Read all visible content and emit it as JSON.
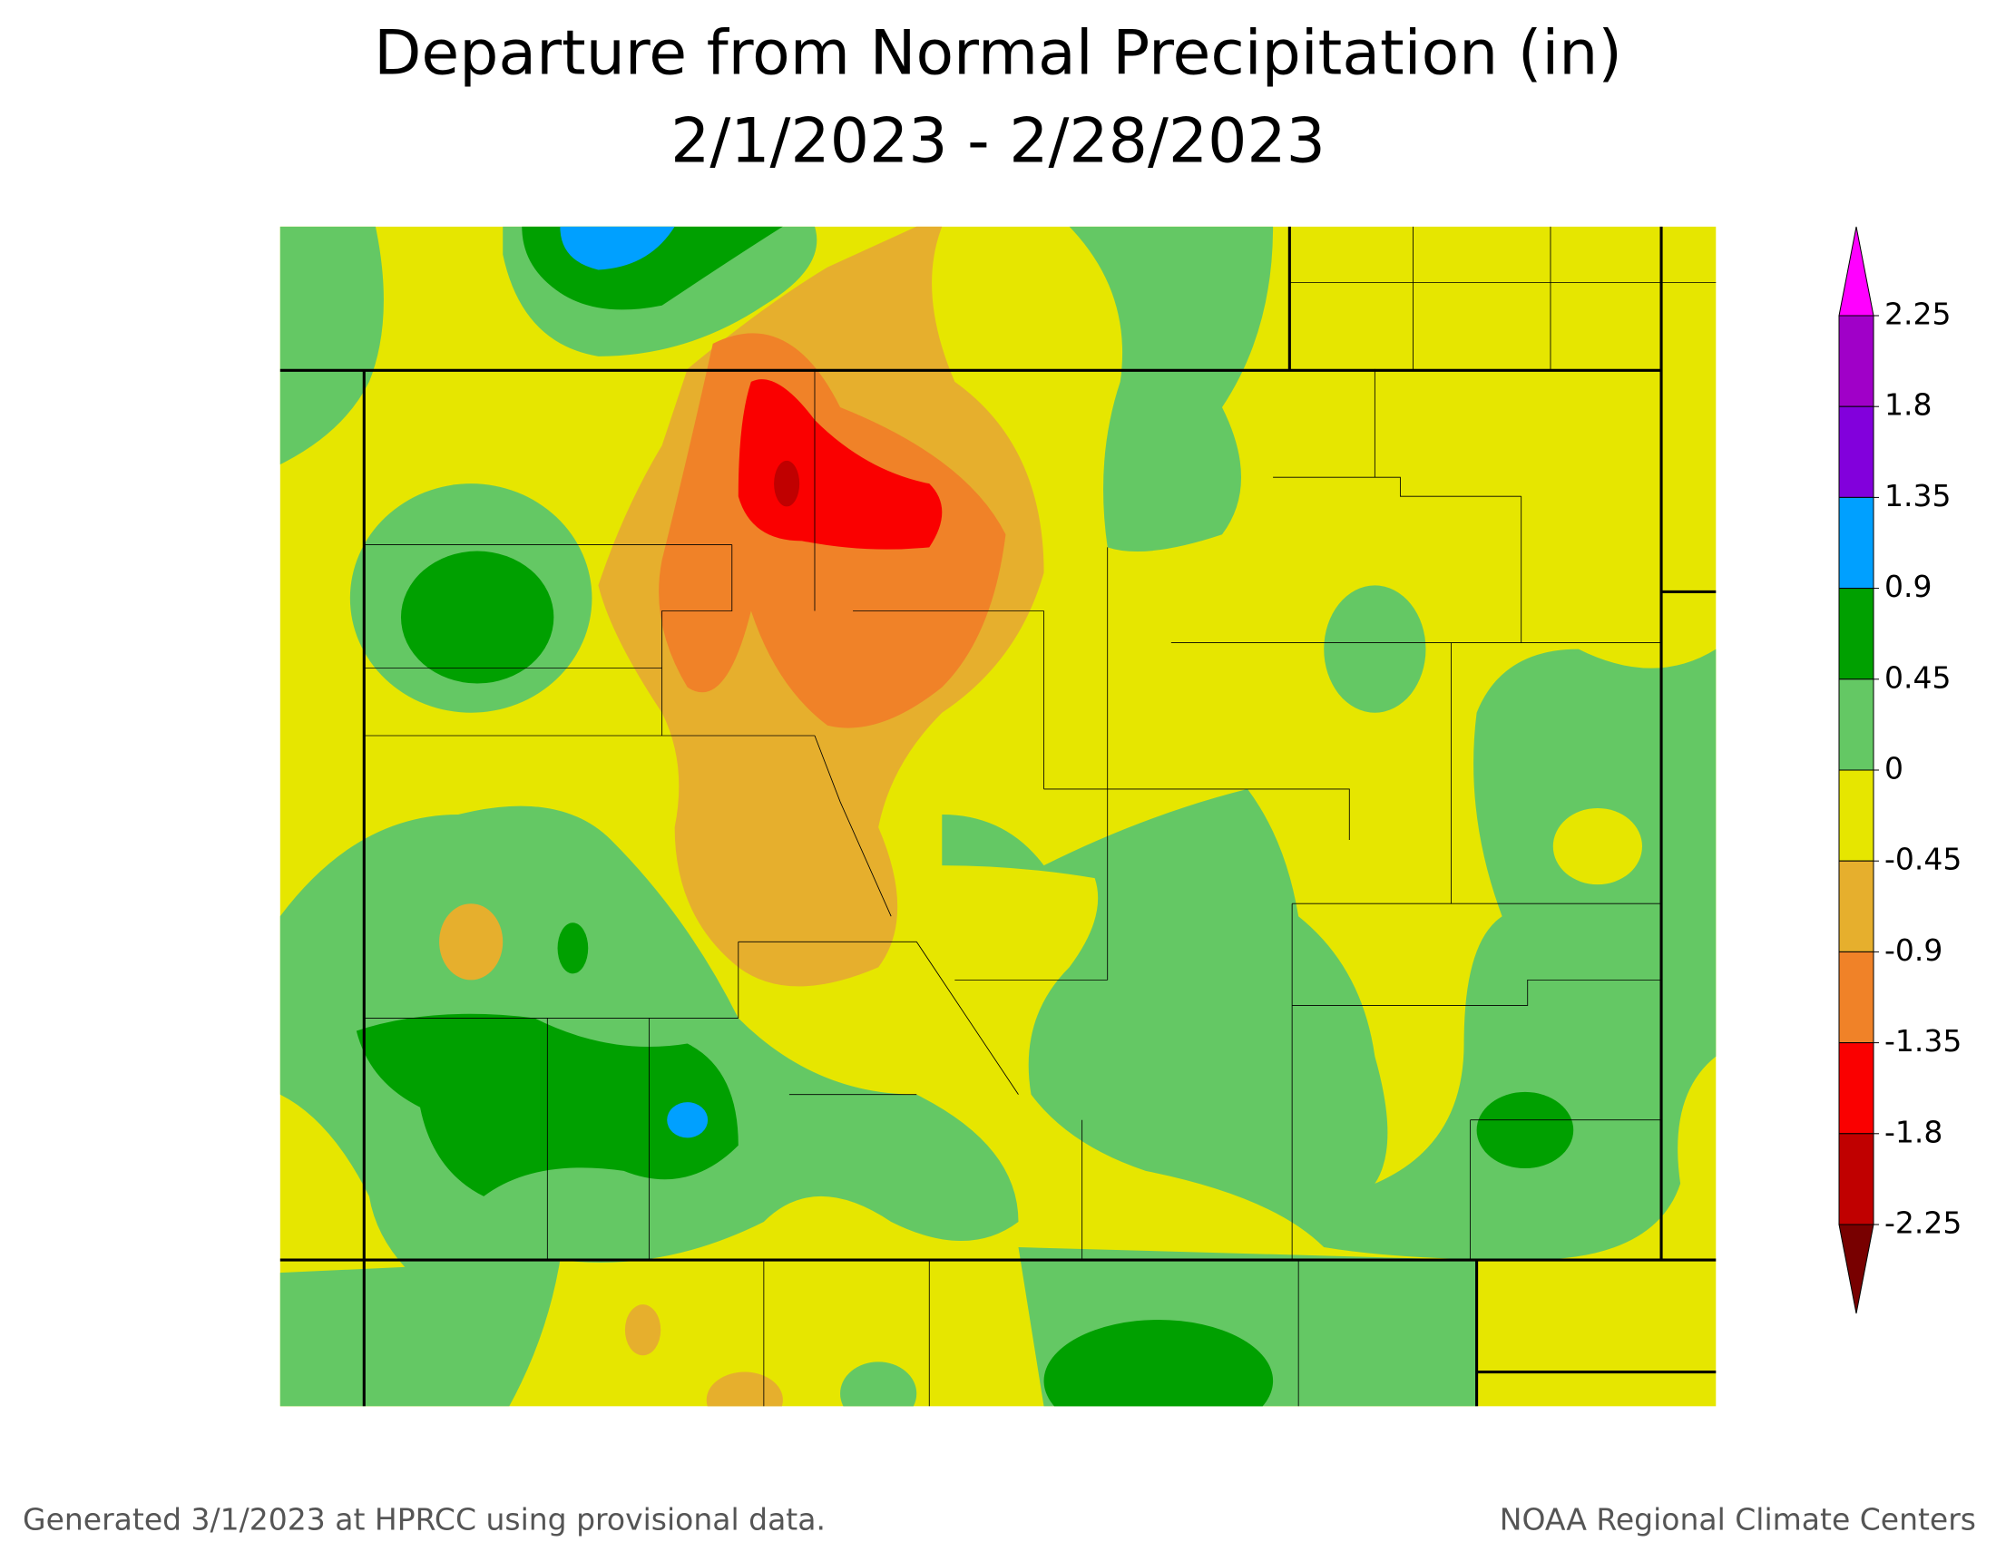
{
  "title": [
    "Departure from Normal Precipitation (in)",
    "2/1/2023 - 2/28/2023"
  ],
  "legend": {
    "ticks": [
      2.25,
      1.8,
      1.35,
      0.9,
      0.45,
      0,
      -0.45,
      -0.9,
      -1.35,
      -1.8,
      -2.25
    ],
    "colors": [
      "#ff00ff",
      "#a000c8",
      "#8200dc",
      "#00a0ff",
      "#00a000",
      "#64c864",
      "#e6e600",
      "#e6af2d",
      "#f08228",
      "#fa0000",
      "#c00000",
      "#780000"
    ]
  },
  "footer": {
    "left": "Generated 3/1/2023 at HPRCC using provisional data.",
    "right": "NOAA Regional Climate Centers"
  }
}
